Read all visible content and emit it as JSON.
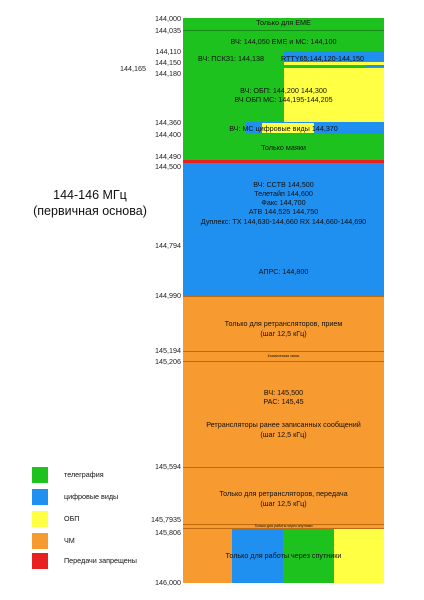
{
  "title_line1": "144-146 МГц",
  "title_line2": "(первичная основа)",
  "colors": {
    "telegraph": "#1ec21e",
    "digital": "#1f8ff0",
    "ssb": "#ffff44",
    "fm": "#f79a30",
    "forbidden": "#e82020",
    "border": "#c06a10"
  },
  "ticks": [
    "144,000",
    "144,035",
    "144,110",
    "144,150",
    "144,165",
    "144,180",
    "144,360",
    "144,400",
    "144,490",
    "144,500",
    "144,794",
    "144,990",
    "145,194",
    "145,206",
    "145,594",
    "145,7935",
    "145,806",
    "146,000"
  ],
  "labels": {
    "eme": "Только для EME",
    "hf_eme_ms": "ВЧ: 144,050 EME и MC: 144,100",
    "hf_pskz": "ВЧ: ПСКЗ1: 144,138",
    "rtty": "RTTY65:144,120-144,150",
    "ssb1": "ВЧ: ОБП: 144,200 144,300",
    "ssb2": "ВЧ ОБП MC: 144,195-144,205",
    "ms_digital": "ВЧ: MC цифровые виды 144,370",
    "beacons": "Только маяки",
    "digital_block": [
      "ВЧ: ССТВ 144,500",
      "Телетайп 144,600",
      "Факс 144,700",
      "ATB 144,525 144,750",
      "Дуплекс: TX 144,630-144,660 RX 144,660-144,690"
    ],
    "aprs": "АПРС: 144,800",
    "repeater_in": [
      "Только для ретрансляторов, прием",
      "(шаг 12,5 кГц)"
    ],
    "space_comm": "Космическая связь",
    "fm_main": [
      "ВЧ: 145,500",
      "PAC: 145,45",
      "",
      "Ретрансляторы ранее записанных сообщений",
      "(шаг 12,5 кГц)"
    ],
    "repeater_out": [
      "Только для ретрансляторов, передача",
      "(шаг 12,5 кГц)"
    ],
    "sat_note": "Только для работы через спутники",
    "satellites": "Только для работы через спутники"
  },
  "legend": [
    {
      "label": "телеграфия",
      "color_key": "telegraph"
    },
    {
      "label": "цифровые виды",
      "color_key": "digital"
    },
    {
      "label": "ОБП",
      "color_key": "ssb"
    },
    {
      "label": "ЧМ",
      "color_key": "fm"
    },
    {
      "label": "Передачи запрещены",
      "color_key": "forbidden"
    }
  ]
}
